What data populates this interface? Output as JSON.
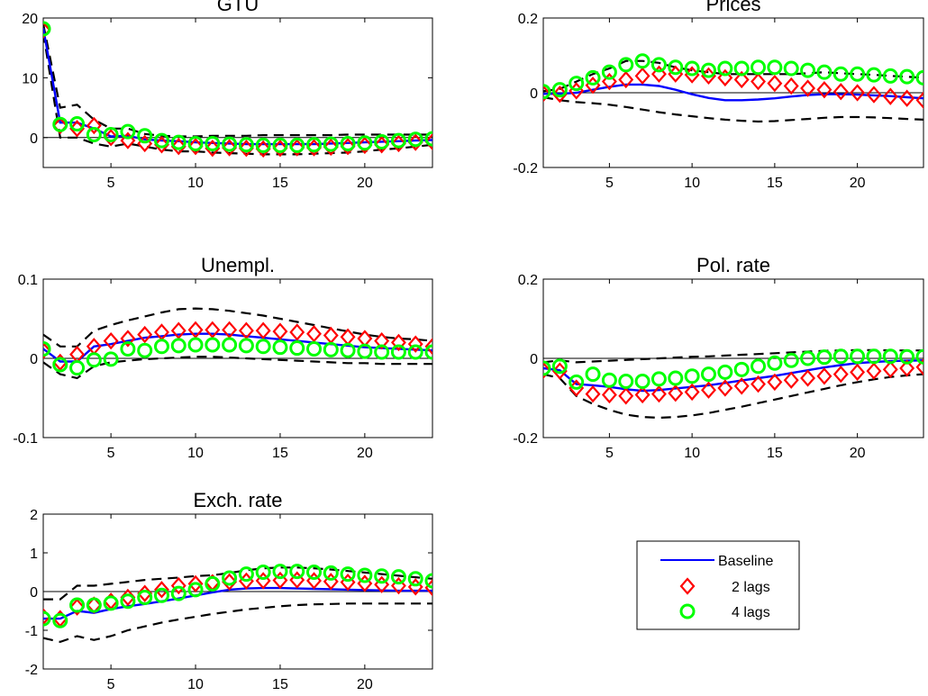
{
  "chart_data": [
    {
      "type": "line",
      "title": "GTU",
      "x": [
        1,
        2,
        3,
        4,
        5,
        6,
        7,
        8,
        9,
        10,
        11,
        12,
        13,
        14,
        15,
        16,
        17,
        18,
        19,
        20,
        21,
        22,
        23,
        24
      ],
      "xlim": [
        1,
        24
      ],
      "ylim": [
        -5,
        20
      ],
      "xticks": [
        5,
        10,
        15,
        20
      ],
      "yticks": [
        0,
        10,
        20
      ],
      "series": [
        {
          "key": "baseline",
          "values": [
            18.3,
            2.5,
            2.5,
            1.5,
            0.2,
            0.3,
            -0.3,
            -0.5,
            -0.6,
            -0.8,
            -0.9,
            -1.0,
            -1.1,
            -1.1,
            -1.1,
            -1.1,
            -1.1,
            -1.0,
            -0.9,
            -0.8,
            -0.7,
            -0.6,
            -0.5,
            -0.4
          ]
        },
        {
          "key": "lags2",
          "values": [
            18.0,
            2.0,
            1.5,
            2.0,
            0.0,
            -0.5,
            -1.0,
            -1.2,
            -1.5,
            -1.5,
            -1.8,
            -1.7,
            -1.8,
            -1.9,
            -1.8,
            -1.7,
            -1.7,
            -1.6,
            -1.5,
            -1.3,
            -1.2,
            -1.0,
            -0.8,
            -0.7
          ]
        },
        {
          "key": "lags4",
          "values": [
            18.2,
            2.2,
            2.3,
            0.5,
            0.5,
            1.0,
            0.3,
            -0.5,
            -0.8,
            -1.0,
            -1.0,
            -1.1,
            -1.2,
            -1.3,
            -1.3,
            -1.3,
            -1.2,
            -1.1,
            -1.0,
            -0.9,
            -0.7,
            -0.5,
            -0.3,
            -0.2
          ]
        },
        {
          "key": "upper",
          "values": [
            19.0,
            5.0,
            5.5,
            3.0,
            1.5,
            1.5,
            0.6,
            0.3,
            0.2,
            0.2,
            0.3,
            0.3,
            0.3,
            0.4,
            0.4,
            0.4,
            0.4,
            0.4,
            0.5,
            0.5,
            0.5,
            0.5,
            0.5,
            0.5
          ]
        },
        {
          "key": "lower",
          "values": [
            17.5,
            0.0,
            0.0,
            -1.0,
            -1.5,
            -1.0,
            -1.5,
            -2.0,
            -2.3,
            -2.3,
            -2.5,
            -2.6,
            -2.7,
            -2.8,
            -2.8,
            -2.8,
            -2.7,
            -2.6,
            -2.5,
            -2.3,
            -2.0,
            -1.8,
            -1.5,
            -1.2
          ]
        }
      ]
    },
    {
      "type": "line",
      "title": "Prices",
      "x": [
        1,
        2,
        3,
        4,
        5,
        6,
        7,
        8,
        9,
        10,
        11,
        12,
        13,
        14,
        15,
        16,
        17,
        18,
        19,
        20,
        21,
        22,
        23,
        24
      ],
      "xlim": [
        1,
        24
      ],
      "ylim": [
        -0.2,
        0.2
      ],
      "xticks": [
        5,
        10,
        15,
        20
      ],
      "yticks": [
        -0.2,
        0,
        0.2
      ],
      "series": [
        {
          "key": "baseline",
          "values": [
            -0.003,
            -0.003,
            0.0,
            0.008,
            0.016,
            0.022,
            0.022,
            0.018,
            0.008,
            -0.004,
            -0.014,
            -0.02,
            -0.02,
            -0.018,
            -0.015,
            -0.01,
            -0.006,
            -0.004,
            -0.004,
            -0.005,
            -0.007,
            -0.009,
            -0.012,
            -0.015
          ]
        },
        {
          "key": "lags2",
          "values": [
            -0.002,
            -0.004,
            0.005,
            0.02,
            0.03,
            0.035,
            0.045,
            0.05,
            0.05,
            0.048,
            0.045,
            0.04,
            0.035,
            0.03,
            0.025,
            0.018,
            0.012,
            0.008,
            0.003,
            0.0,
            -0.005,
            -0.01,
            -0.015,
            -0.02
          ]
        },
        {
          "key": "lags4",
          "values": [
            0.003,
            0.008,
            0.025,
            0.04,
            0.055,
            0.075,
            0.085,
            0.075,
            0.068,
            0.065,
            0.06,
            0.065,
            0.065,
            0.068,
            0.068,
            0.065,
            0.06,
            0.055,
            0.05,
            0.05,
            0.048,
            0.045,
            0.043,
            0.04
          ]
        },
        {
          "key": "upper",
          "values": [
            0.004,
            0.01,
            0.03,
            0.05,
            0.065,
            0.085,
            0.085,
            0.08,
            0.068,
            0.06,
            0.055,
            0.05,
            0.05,
            0.05,
            0.05,
            0.05,
            0.052,
            0.055,
            0.052,
            0.05,
            0.048,
            0.045,
            0.043,
            0.04
          ]
        },
        {
          "key": "lower",
          "values": [
            -0.012,
            -0.02,
            -0.025,
            -0.028,
            -0.032,
            -0.038,
            -0.045,
            -0.052,
            -0.058,
            -0.063,
            -0.068,
            -0.072,
            -0.075,
            -0.077,
            -0.076,
            -0.073,
            -0.07,
            -0.067,
            -0.065,
            -0.065,
            -0.066,
            -0.068,
            -0.07,
            -0.072
          ]
        }
      ]
    },
    {
      "type": "line",
      "title": "Unempl.",
      "x": [
        1,
        2,
        3,
        4,
        5,
        6,
        7,
        8,
        9,
        10,
        11,
        12,
        13,
        14,
        15,
        16,
        17,
        18,
        19,
        20,
        21,
        22,
        23,
        24
      ],
      "xlim": [
        1,
        24
      ],
      "ylim": [
        -0.1,
        0.1
      ],
      "xticks": [
        5,
        10,
        15,
        20
      ],
      "yticks": [
        -0.1,
        0,
        0.1
      ],
      "series": [
        {
          "key": "baseline",
          "values": [
            0.012,
            -0.004,
            -0.004,
            0.015,
            0.018,
            0.022,
            0.026,
            0.028,
            0.03,
            0.031,
            0.031,
            0.03,
            0.028,
            0.026,
            0.024,
            0.022,
            0.02,
            0.018,
            0.016,
            0.014,
            0.013,
            0.012,
            0.011,
            0.01
          ]
        },
        {
          "key": "lags2",
          "values": [
            0.01,
            -0.005,
            0.005,
            0.015,
            0.022,
            0.025,
            0.03,
            0.033,
            0.035,
            0.036,
            0.036,
            0.036,
            0.035,
            0.035,
            0.034,
            0.033,
            0.031,
            0.029,
            0.027,
            0.025,
            0.022,
            0.02,
            0.018,
            0.015
          ]
        },
        {
          "key": "lags4",
          "values": [
            0.012,
            -0.008,
            -0.012,
            -0.002,
            -0.001,
            0.012,
            0.01,
            0.015,
            0.016,
            0.017,
            0.017,
            0.017,
            0.016,
            0.015,
            0.014,
            0.013,
            0.012,
            0.011,
            0.01,
            0.009,
            0.008,
            0.008,
            0.008,
            0.008
          ]
        },
        {
          "key": "upper",
          "values": [
            0.03,
            0.015,
            0.015,
            0.035,
            0.042,
            0.048,
            0.053,
            0.058,
            0.062,
            0.063,
            0.062,
            0.06,
            0.057,
            0.054,
            0.05,
            0.046,
            0.042,
            0.038,
            0.034,
            0.03,
            0.027,
            0.025,
            0.024,
            0.022
          ]
        },
        {
          "key": "lower",
          "values": [
            -0.005,
            -0.02,
            -0.025,
            -0.01,
            -0.005,
            -0.003,
            -0.001,
            0.0,
            0.001,
            0.002,
            0.002,
            0.001,
            0.0,
            -0.001,
            -0.002,
            -0.003,
            -0.004,
            -0.005,
            -0.006,
            -0.006,
            -0.007,
            -0.007,
            -0.007,
            -0.007
          ]
        }
      ]
    },
    {
      "type": "line",
      "title": "Pol. rate",
      "x": [
        1,
        2,
        3,
        4,
        5,
        6,
        7,
        8,
        9,
        10,
        11,
        12,
        13,
        14,
        15,
        16,
        17,
        18,
        19,
        20,
        21,
        22,
        23,
        24
      ],
      "xlim": [
        1,
        24
      ],
      "ylim": [
        -0.2,
        0.2
      ],
      "xticks": [
        5,
        10,
        15,
        20
      ],
      "yticks": [
        -0.2,
        0,
        0.2
      ],
      "series": [
        {
          "key": "baseline",
          "values": [
            -0.025,
            -0.03,
            -0.065,
            -0.068,
            -0.072,
            -0.078,
            -0.082,
            -0.08,
            -0.076,
            -0.072,
            -0.068,
            -0.062,
            -0.056,
            -0.05,
            -0.044,
            -0.037,
            -0.03,
            -0.023,
            -0.017,
            -0.012,
            -0.009,
            -0.007,
            -0.006,
            -0.005
          ]
        },
        {
          "key": "lags2",
          "values": [
            -0.03,
            -0.032,
            -0.075,
            -0.09,
            -0.092,
            -0.095,
            -0.092,
            -0.09,
            -0.088,
            -0.085,
            -0.08,
            -0.075,
            -0.07,
            -0.065,
            -0.06,
            -0.055,
            -0.05,
            -0.045,
            -0.04,
            -0.035,
            -0.032,
            -0.028,
            -0.025,
            -0.022
          ]
        },
        {
          "key": "lags4",
          "values": [
            -0.025,
            -0.02,
            -0.06,
            -0.04,
            -0.055,
            -0.058,
            -0.058,
            -0.052,
            -0.05,
            -0.045,
            -0.04,
            -0.035,
            -0.028,
            -0.02,
            -0.012,
            -0.005,
            0.0,
            0.003,
            0.005,
            0.005,
            0.005,
            0.005,
            0.004,
            0.004
          ]
        },
        {
          "key": "upper",
          "values": [
            -0.01,
            -0.005,
            -0.01,
            -0.008,
            -0.006,
            -0.004,
            -0.002,
            0.0,
            0.002,
            0.004,
            0.005,
            0.007,
            0.009,
            0.011,
            0.013,
            0.015,
            0.017,
            0.019,
            0.02,
            0.021,
            0.021,
            0.02,
            0.02,
            0.02
          ]
        },
        {
          "key": "lower",
          "values": [
            -0.04,
            -0.05,
            -0.095,
            -0.115,
            -0.13,
            -0.142,
            -0.148,
            -0.15,
            -0.148,
            -0.144,
            -0.138,
            -0.13,
            -0.122,
            -0.113,
            -0.104,
            -0.095,
            -0.086,
            -0.077,
            -0.068,
            -0.06,
            -0.053,
            -0.047,
            -0.043,
            -0.04
          ]
        }
      ]
    },
    {
      "type": "line",
      "title": "Exch. rate",
      "x": [
        1,
        2,
        3,
        4,
        5,
        6,
        7,
        8,
        9,
        10,
        11,
        12,
        13,
        14,
        15,
        16,
        17,
        18,
        19,
        20,
        21,
        22,
        23,
        24
      ],
      "xlim": [
        1,
        24
      ],
      "ylim": [
        -2,
        2
      ],
      "xticks": [
        5,
        10,
        15,
        20
      ],
      "yticks": [
        -2,
        -1,
        0,
        1,
        2
      ],
      "series": [
        {
          "key": "baseline",
          "values": [
            -0.7,
            -0.7,
            -0.5,
            -0.55,
            -0.45,
            -0.38,
            -0.32,
            -0.25,
            -0.18,
            -0.1,
            -0.02,
            0.05,
            0.08,
            0.09,
            0.09,
            0.08,
            0.07,
            0.06,
            0.05,
            0.04,
            0.03,
            0.02,
            0.02,
            0.02
          ]
        },
        {
          "key": "lags2",
          "values": [
            -0.65,
            -0.7,
            -0.4,
            -0.35,
            -0.25,
            -0.15,
            -0.05,
            0.05,
            0.15,
            0.2,
            0.23,
            0.25,
            0.27,
            0.28,
            0.29,
            0.3,
            0.28,
            0.26,
            0.24,
            0.21,
            0.18,
            0.15,
            0.12,
            0.1
          ]
        },
        {
          "key": "lags4",
          "values": [
            -0.7,
            -0.75,
            -0.35,
            -0.35,
            -0.3,
            -0.25,
            -0.15,
            -0.1,
            -0.05,
            0.05,
            0.2,
            0.35,
            0.45,
            0.5,
            0.52,
            0.52,
            0.5,
            0.48,
            0.45,
            0.42,
            0.4,
            0.38,
            0.33,
            0.28
          ]
        },
        {
          "key": "upper",
          "values": [
            -0.2,
            -0.2,
            0.15,
            0.15,
            0.2,
            0.25,
            0.3,
            0.33,
            0.36,
            0.4,
            0.42,
            0.48,
            0.55,
            0.6,
            0.62,
            0.62,
            0.6,
            0.57,
            0.53,
            0.49,
            0.45,
            0.41,
            0.37,
            0.33
          ]
        },
        {
          "key": "lower",
          "values": [
            -1.2,
            -1.3,
            -1.15,
            -1.25,
            -1.15,
            -1.0,
            -0.9,
            -0.8,
            -0.72,
            -0.65,
            -0.58,
            -0.52,
            -0.46,
            -0.42,
            -0.38,
            -0.35,
            -0.33,
            -0.32,
            -0.31,
            -0.31,
            -0.31,
            -0.31,
            -0.31,
            -0.31
          ]
        }
      ]
    }
  ],
  "legend": {
    "position": "lower-right",
    "entries": [
      {
        "label": "Baseline",
        "style": "line",
        "color": "#0000ff"
      },
      {
        "label": "2 lags",
        "style": "diamond",
        "color": "#ff0000"
      },
      {
        "label": "4 lags",
        "style": "circle",
        "color": "#00ff00"
      }
    ]
  },
  "colors": {
    "baseline": "#0000ff",
    "lags2": "#ff0000",
    "lags4": "#00ff00",
    "band": "#000000",
    "zero_line": "#000000"
  }
}
